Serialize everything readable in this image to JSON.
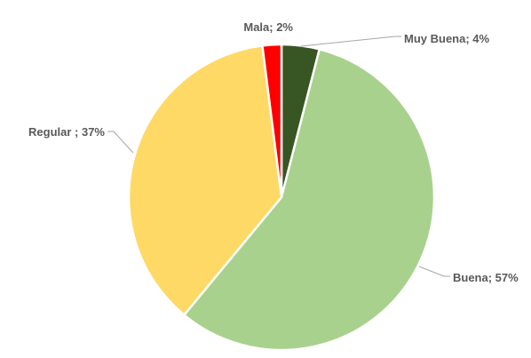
{
  "chart_data": {
    "type": "pie",
    "title": "",
    "categories": [
      "Muy Buena",
      "Buena",
      "Regular ",
      "Mala"
    ],
    "values": [
      4,
      57,
      37,
      2
    ],
    "colors": [
      "#375623",
      "#a9d18e",
      "#ffd966",
      "#ff0000"
    ],
    "data_labels": [
      "Muy Buena; 4%",
      "Buena; 57%",
      "Regular ; 37%",
      "Mala; 2%"
    ],
    "legend": "none",
    "start_angle_deg": 0,
    "direction": "clockwise"
  }
}
